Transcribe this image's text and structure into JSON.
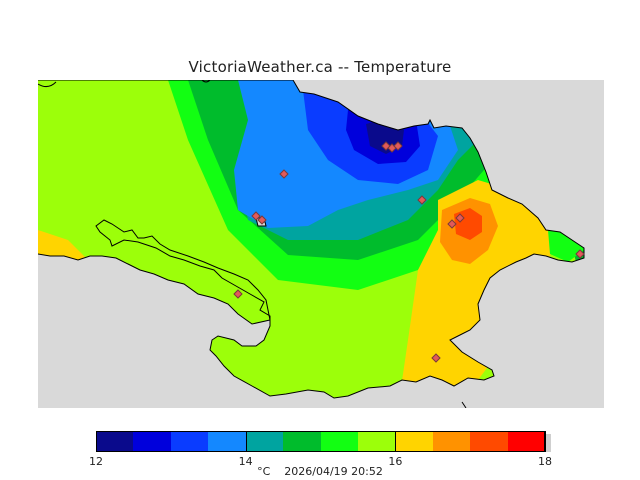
{
  "title": "VictoriaWeather.ca -- Temperature",
  "legend": {
    "colors": [
      "#0a0a8c",
      "#0000dc",
      "#0a3cff",
      "#1488ff",
      "#00a4a0",
      "#00bc2c",
      "#12ff12",
      "#9cff0a",
      "#ffd400",
      "#ff9200",
      "#ff4a00",
      "#ff0000"
    ],
    "range": [
      12,
      18
    ],
    "tick_labels": [
      "12",
      "14",
      "16",
      "18"
    ],
    "tick_values": [
      12,
      14,
      16,
      18
    ]
  },
  "footer": {
    "unit": "°C",
    "timestamp": "2026/04/19 20:52"
  },
  "map": {
    "ocean_color": "#d9d9d9",
    "marker_color": "#e25a5a",
    "station_count": 12
  }
}
